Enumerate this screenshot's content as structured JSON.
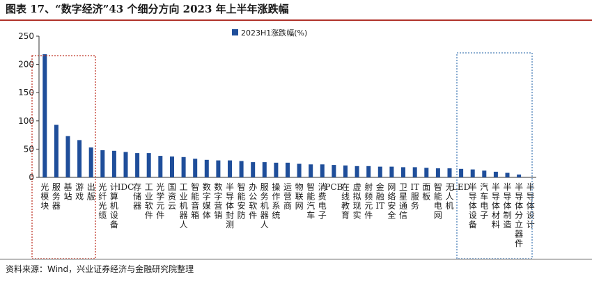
{
  "figure": {
    "title": "图表 17、“数字经济”43 个细分方向 2023 年上半年涨跌幅",
    "source": "资料来源：Wind，兴业证券经济与金融研究院整理"
  },
  "colors": {
    "bar": "#1f4e9a",
    "accent": "#b0322a",
    "highlight_left": "#c0392b",
    "highlight_right": "#4a7fb8"
  },
  "chart_data": {
    "type": "bar",
    "title": "",
    "xlabel": "",
    "ylabel": "",
    "ylim": [
      0,
      250
    ],
    "yticks": [
      0,
      50,
      100,
      150,
      200,
      250
    ],
    "grid": false,
    "legend_position": "top-center",
    "categories": [
      "光模块",
      "服务器",
      "基站",
      "游戏",
      "出版",
      "光纤光缆",
      "计算机设备",
      "IDC",
      "存储器",
      "工业软件",
      "光学元件",
      "国资云",
      "工业机器人",
      "智能音箱",
      "数字媒体",
      "数字营销",
      "半导体封测",
      "智能安防",
      "办公软件",
      "服务机器人",
      "操作系统",
      "运营商",
      "物联网",
      "智能汽车",
      "消费电子",
      "PCB",
      "在线教育",
      "虚拟现实",
      "射频元件",
      "金融IT",
      "网络安全",
      "卫星通信",
      "IT服务",
      "面板",
      "智能电网",
      "无人机",
      "LED",
      "半导体设备",
      "汽车电子",
      "半导体材料",
      "半导体制造",
      "半导体分立器件",
      "半导体设计"
    ],
    "series": [
      {
        "name": "2023H1涨跌幅(%)",
        "values": [
          218,
          93,
          73,
          66,
          53,
          48,
          47,
          45,
          43,
          43,
          38,
          37,
          36,
          33,
          31,
          30,
          30,
          29,
          27,
          27,
          26,
          26,
          24,
          23,
          23,
          22,
          21,
          20,
          20,
          19,
          19,
          18,
          18,
          17,
          16,
          16,
          15,
          14,
          12,
          10,
          8,
          5,
          0
        ]
      }
    ]
  }
}
